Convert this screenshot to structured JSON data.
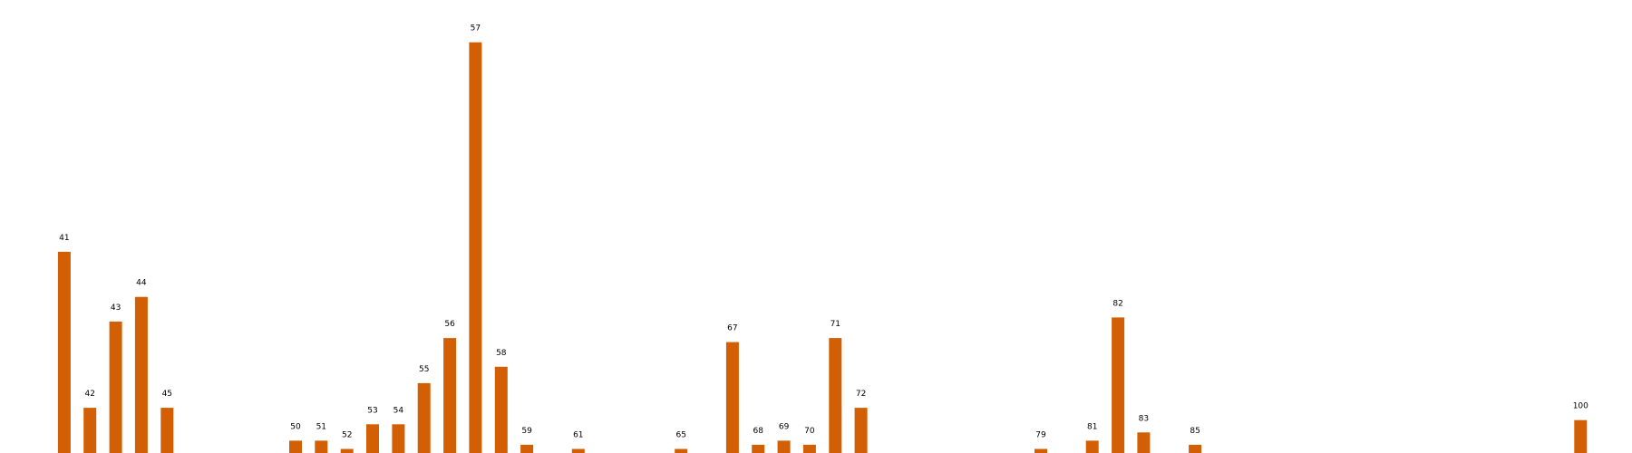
{
  "chart_data": {
    "type": "bar",
    "categories": [
      "41",
      "42",
      "43",
      "44",
      "45",
      "50",
      "51",
      "52",
      "53",
      "54",
      "55",
      "56",
      "57",
      "58",
      "59",
      "61",
      "65",
      "67",
      "68",
      "69",
      "70",
      "71",
      "72",
      "79",
      "81",
      "82",
      "83",
      "85",
      "100"
    ],
    "x": [
      41,
      42,
      43,
      44,
      45,
      50,
      51,
      52,
      53,
      54,
      55,
      56,
      57,
      58,
      59,
      61,
      65,
      67,
      68,
      69,
      70,
      71,
      72,
      79,
      81,
      82,
      83,
      85,
      100
    ],
    "values": [
      49,
      11,
      32,
      38,
      11,
      3,
      3,
      1,
      7,
      7,
      17,
      28,
      100,
      21,
      2,
      1,
      1,
      27,
      2,
      3,
      2,
      28,
      11,
      1,
      3,
      33,
      5,
      2,
      8
    ],
    "title": "",
    "xlabel": "",
    "ylabel": "",
    "xlim": [
      38.5,
      102
    ],
    "ylim": [
      0,
      105
    ],
    "grid": false,
    "legend": "none",
    "axes_visible": false,
    "bar_color": "#d35f04",
    "label_color": "#000000",
    "background_color": "#ffffff"
  }
}
